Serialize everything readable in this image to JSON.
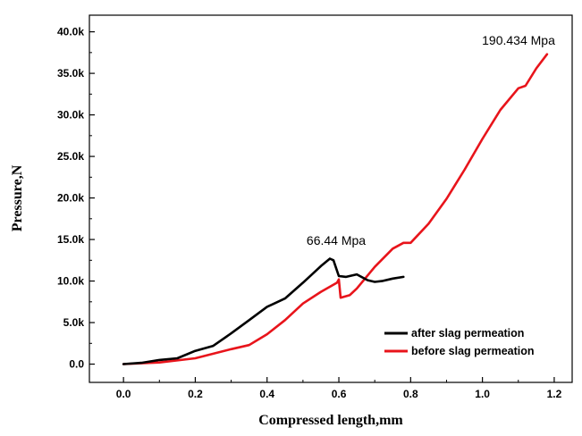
{
  "chart_data": {
    "type": "line",
    "xlabel": "Compressed length,mm",
    "ylabel": "Pressure,N",
    "xlim": [
      -0.095,
      1.25
    ],
    "ylim": [
      -2200,
      42000
    ],
    "x_ticks": [
      0.0,
      0.2,
      0.4,
      0.6,
      0.8,
      1.0,
      1.2
    ],
    "x_tick_labels": [
      "0.0",
      "0.2",
      "0.4",
      "0.6",
      "0.8",
      "1.0",
      "1.2"
    ],
    "y_ticks": [
      0,
      5000,
      10000,
      15000,
      20000,
      25000,
      30000,
      35000,
      40000
    ],
    "y_tick_labels": [
      "0.0",
      "5.0k",
      "10.0k",
      "15.0k",
      "20.0k",
      "25.0k",
      "30.0k",
      "35.0k",
      "40.0k"
    ],
    "grid": false,
    "legend_position": "bottom-right",
    "series": [
      {
        "name": "after slag permeation",
        "color": "#000000",
        "x": [
          0.0,
          0.05,
          0.1,
          0.15,
          0.2,
          0.25,
          0.3,
          0.35,
          0.4,
          0.42,
          0.45,
          0.5,
          0.55,
          0.575,
          0.585,
          0.6,
          0.62,
          0.65,
          0.68,
          0.7,
          0.72,
          0.75,
          0.78
        ],
        "y": [
          0,
          150,
          500,
          700,
          1600,
          2200,
          3700,
          5300,
          6900,
          7300,
          7900,
          9800,
          11800,
          12700,
          12500,
          10600,
          10500,
          10800,
          10100,
          9900,
          10000,
          10300,
          10500
        ]
      },
      {
        "name": "before slag permeation",
        "color": "#e8141b",
        "x": [
          0.0,
          0.1,
          0.2,
          0.3,
          0.35,
          0.4,
          0.45,
          0.5,
          0.55,
          0.595,
          0.6,
          0.605,
          0.63,
          0.65,
          0.7,
          0.75,
          0.78,
          0.8,
          0.85,
          0.9,
          0.95,
          1.0,
          1.05,
          1.1,
          1.12,
          1.15,
          1.18
        ],
        "y": [
          0,
          200,
          700,
          1800,
          2300,
          3600,
          5300,
          7300,
          8700,
          9800,
          10200,
          8000,
          8300,
          9100,
          11700,
          13900,
          14600,
          14600,
          16900,
          19900,
          23400,
          27100,
          30600,
          33200,
          33500,
          35600,
          37300
        ]
      }
    ],
    "annotations": [
      {
        "text": "66.44 Mpa",
        "x": 0.575,
        "y": 12700
      },
      {
        "text": "190.434 Mpa",
        "x": 1.18,
        "y": 37300
      }
    ]
  }
}
